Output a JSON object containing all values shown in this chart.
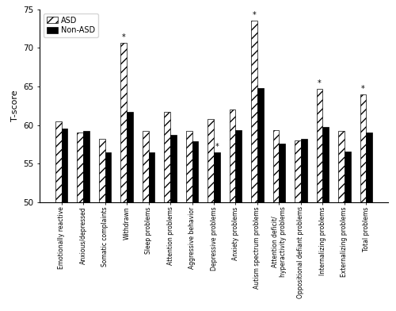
{
  "categories": [
    "Emotionally reactive",
    "Anxious/depressed",
    "Somatic complaints",
    "Withdrawn",
    "Sleep problems",
    "Attention problems",
    "Aggressive behavior",
    "Depressive problems",
    "Anxiety problems",
    "Autism spectrum problems",
    "Attention deficit/\nhyperactivity problems",
    "Oppositional defiant problems",
    "Internalizing problems",
    "Externalizing problems",
    "Total problems"
  ],
  "asd_values": [
    60.5,
    59.0,
    58.2,
    70.7,
    59.2,
    61.7,
    59.2,
    60.8,
    62.0,
    73.5,
    59.3,
    58.0,
    64.7,
    59.2,
    64.0
  ],
  "nonasd_values": [
    59.5,
    59.2,
    56.5,
    61.7,
    56.5,
    58.7,
    57.9,
    56.5,
    59.3,
    64.8,
    57.6,
    58.2,
    59.8,
    56.6,
    59.0
  ],
  "star_asd": [
    false,
    false,
    false,
    true,
    false,
    false,
    false,
    false,
    false,
    true,
    false,
    false,
    true,
    false,
    true
  ],
  "star_nonasd": [
    false,
    false,
    false,
    false,
    false,
    false,
    false,
    true,
    false,
    false,
    false,
    false,
    false,
    false,
    false
  ],
  "ylim": [
    50,
    75
  ],
  "yticks": [
    50,
    55,
    60,
    65,
    70,
    75
  ],
  "ylabel": "T-score",
  "legend_labels": [
    "ASD",
    "Non-ASD"
  ],
  "hatch_asd": "///",
  "color_asd": "white",
  "color_nonasd": "black",
  "bar_width": 0.28,
  "figsize": [
    5.0,
    3.92
  ],
  "dpi": 100
}
